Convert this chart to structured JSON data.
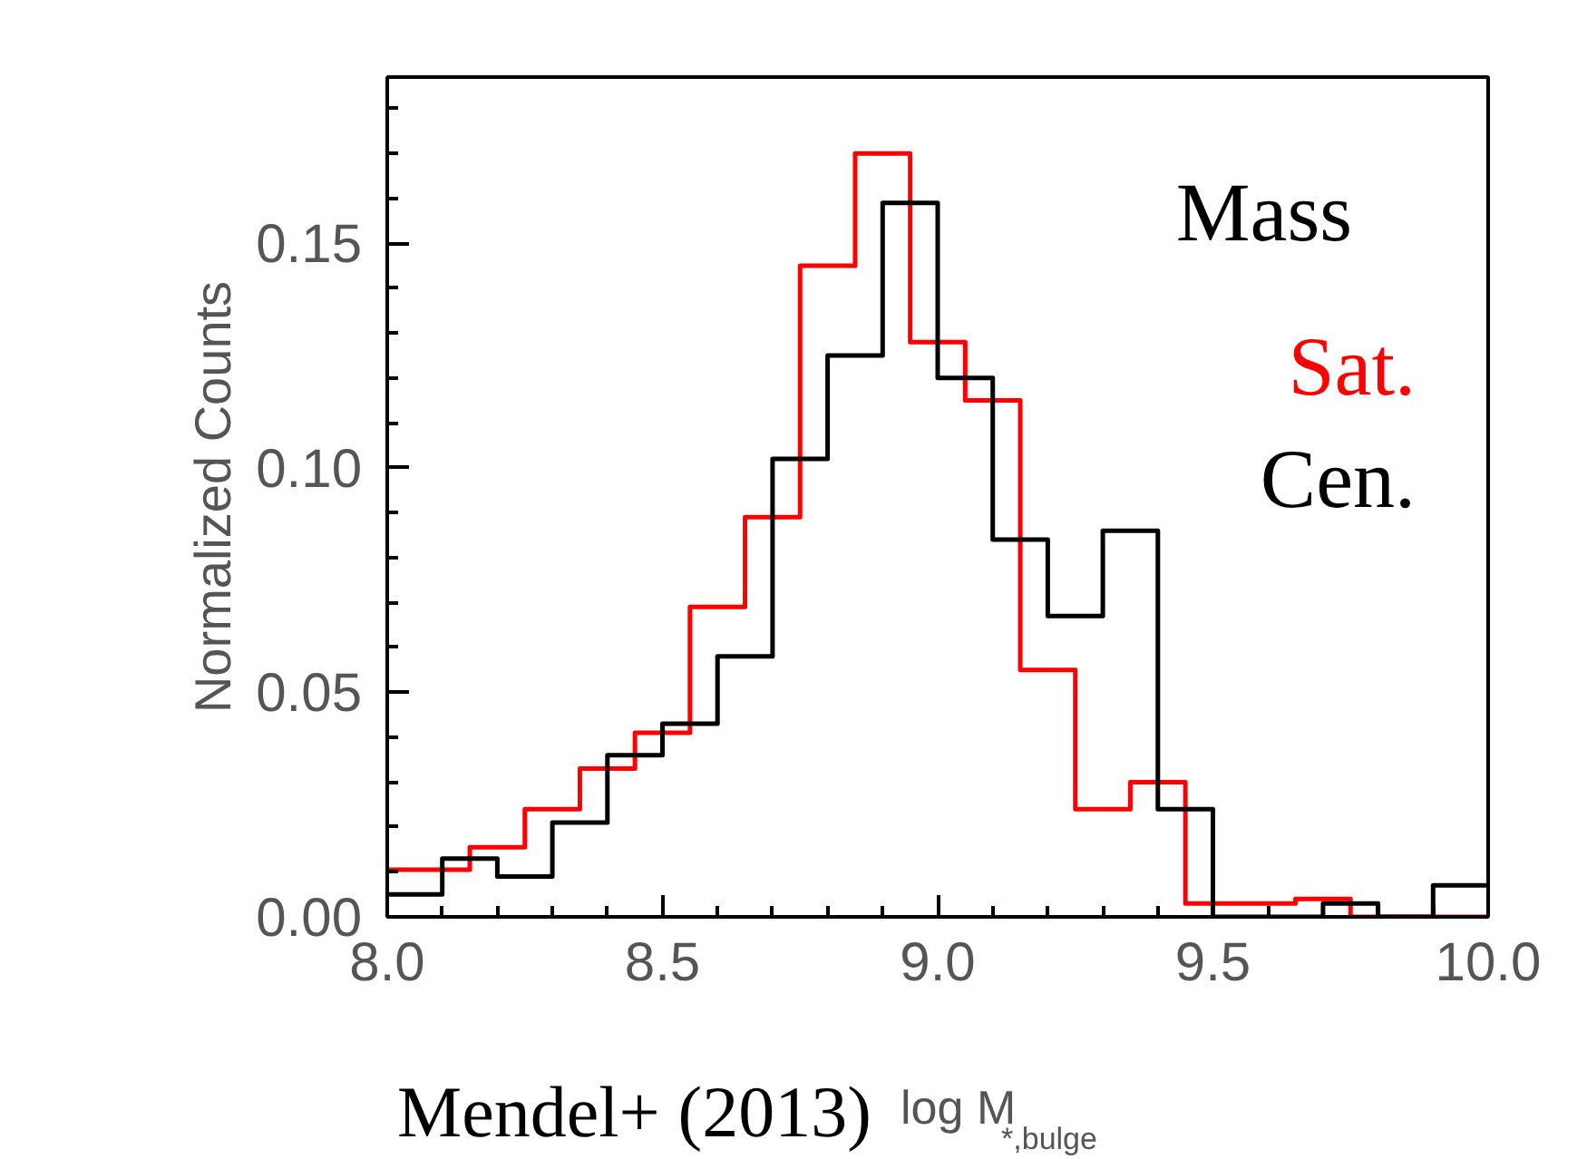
{
  "chart_data": {
    "type": "step",
    "xlabel": "log M$_{*,bulge}$",
    "ylabel": "Normalized Counts",
    "annotations": [
      "Mass",
      "Mendel+ (2013)"
    ],
    "series": [
      {
        "name": "Sat.",
        "color": "#ff0000",
        "x": [
          8.0,
          8.15,
          8.25,
          8.35,
          8.45,
          8.55,
          8.65,
          8.75,
          8.85,
          8.95,
          9.05,
          9.15,
          9.25,
          9.35,
          9.45,
          9.55,
          9.65,
          9.75,
          10.0
        ],
        "values": [
          0.0105,
          0.0155,
          0.024,
          0.033,
          0.041,
          0.069,
          0.089,
          0.145,
          0.17,
          0.128,
          0.115,
          0.055,
          0.024,
          0.03,
          0.003,
          0.003,
          0.004,
          0.0,
          0.0
        ]
      },
      {
        "name": "Cen.",
        "color": "#000000",
        "x": [
          8.0,
          8.1,
          8.2,
          8.3,
          8.4,
          8.5,
          8.6,
          8.7,
          8.8,
          8.9,
          9.0,
          9.1,
          9.2,
          9.3,
          9.4,
          9.5,
          9.6,
          9.7,
          9.8,
          9.9,
          10.0
        ],
        "values": [
          0.005,
          0.013,
          0.009,
          0.021,
          0.036,
          0.043,
          0.058,
          0.102,
          0.125,
          0.159,
          0.12,
          0.084,
          0.067,
          0.086,
          0.024,
          0.0,
          0.0,
          0.003,
          0.0,
          0.007,
          0.007
        ]
      }
    ],
    "xlim": [
      8.0,
      10.0
    ],
    "ylim": [
      0.0,
      0.187
    ],
    "xticks": [
      {
        "value": 8.0,
        "label": "8.0"
      },
      {
        "value": 8.1,
        "label": null
      },
      {
        "value": 8.2,
        "label": null
      },
      {
        "value": 8.3,
        "label": null
      },
      {
        "value": 8.4,
        "label": null
      },
      {
        "value": 8.5,
        "label": "8.5"
      },
      {
        "value": 8.6,
        "label": null
      },
      {
        "value": 8.7,
        "label": null
      },
      {
        "value": 8.8,
        "label": null
      },
      {
        "value": 8.9,
        "label": null
      },
      {
        "value": 9.0,
        "label": "9.0"
      },
      {
        "value": 9.1,
        "label": null
      },
      {
        "value": 9.2,
        "label": null
      },
      {
        "value": 9.3,
        "label": null
      },
      {
        "value": 9.4,
        "label": null
      },
      {
        "value": 9.5,
        "label": "9.5"
      },
      {
        "value": 9.6,
        "label": null
      },
      {
        "value": 9.7,
        "label": null
      },
      {
        "value": 9.8,
        "label": null
      },
      {
        "value": 9.9,
        "label": null
      },
      {
        "value": 10.0,
        "label": "10.0"
      }
    ],
    "yticks": [
      {
        "value": 0.0,
        "label": "0.00"
      },
      {
        "value": 0.01,
        "label": null
      },
      {
        "value": 0.02,
        "label": null
      },
      {
        "value": 0.03,
        "label": null
      },
      {
        "value": 0.04,
        "label": null
      },
      {
        "value": 0.05,
        "label": "0.05"
      },
      {
        "value": 0.06,
        "label": null
      },
      {
        "value": 0.07,
        "label": null
      },
      {
        "value": 0.08,
        "label": null
      },
      {
        "value": 0.09,
        "label": null
      },
      {
        "value": 0.1,
        "label": "0.10"
      },
      {
        "value": 0.11,
        "label": null
      },
      {
        "value": 0.12,
        "label": null
      },
      {
        "value": 0.13,
        "label": null
      },
      {
        "value": 0.14,
        "label": null
      },
      {
        "value": 0.15,
        "label": "0.15"
      },
      {
        "value": 0.16,
        "label": null
      },
      {
        "value": 0.17,
        "label": null
      },
      {
        "value": 0.18,
        "label": null
      }
    ],
    "grid": false
  }
}
